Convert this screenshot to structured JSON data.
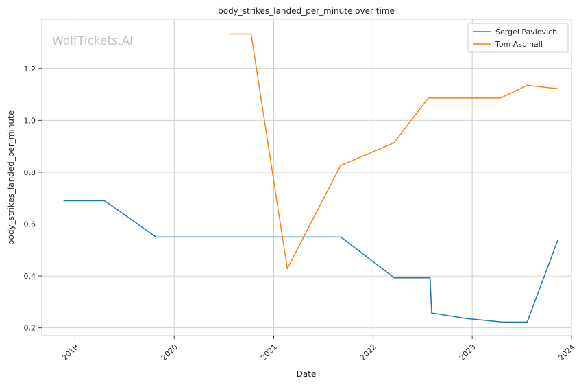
{
  "watermark": "WolfTickets.AI",
  "chart_data": {
    "type": "line",
    "title": "body_strikes_landed_per_minute over time",
    "xlabel": "Date",
    "ylabel": "body_strikes_landed_per_minute",
    "xlim": [
      "2018-09-01",
      "2024-01-01"
    ],
    "ylim": [
      0.17,
      1.39
    ],
    "x_ticks": [
      "2019",
      "2020",
      "2021",
      "2022",
      "2023",
      "2024"
    ],
    "y_ticks": [
      "0.2",
      "0.4",
      "0.6",
      "0.8",
      "1.0",
      "1.2"
    ],
    "grid": true,
    "legend_position": "top-right",
    "series": [
      {
        "name": "Sergei Pavlovich",
        "color": "#1f77b4",
        "points": [
          [
            "2018-11-20",
            0.69
          ],
          [
            "2019-04-20",
            0.69
          ],
          [
            "2019-10-26",
            0.55
          ],
          [
            "2021-09-05",
            0.55
          ],
          [
            "2022-03-20",
            0.393
          ],
          [
            "2022-07-30",
            0.393
          ],
          [
            "2022-08-05",
            0.257
          ],
          [
            "2022-12-10",
            0.236
          ],
          [
            "2023-04-22",
            0.222
          ],
          [
            "2023-07-22",
            0.222
          ],
          [
            "2023-11-12",
            0.54
          ]
        ]
      },
      {
        "name": "Tom Aspinall",
        "color": "#ff7f0e",
        "points": [
          [
            "2020-07-25",
            1.333
          ],
          [
            "2020-10-10",
            1.333
          ],
          [
            "2021-02-20",
            0.428
          ],
          [
            "2021-09-04",
            0.826
          ],
          [
            "2022-03-19",
            0.913
          ],
          [
            "2022-07-23",
            1.086
          ],
          [
            "2023-04-15",
            1.086
          ],
          [
            "2023-07-22",
            1.135
          ],
          [
            "2023-11-11",
            1.122
          ]
        ]
      }
    ]
  }
}
